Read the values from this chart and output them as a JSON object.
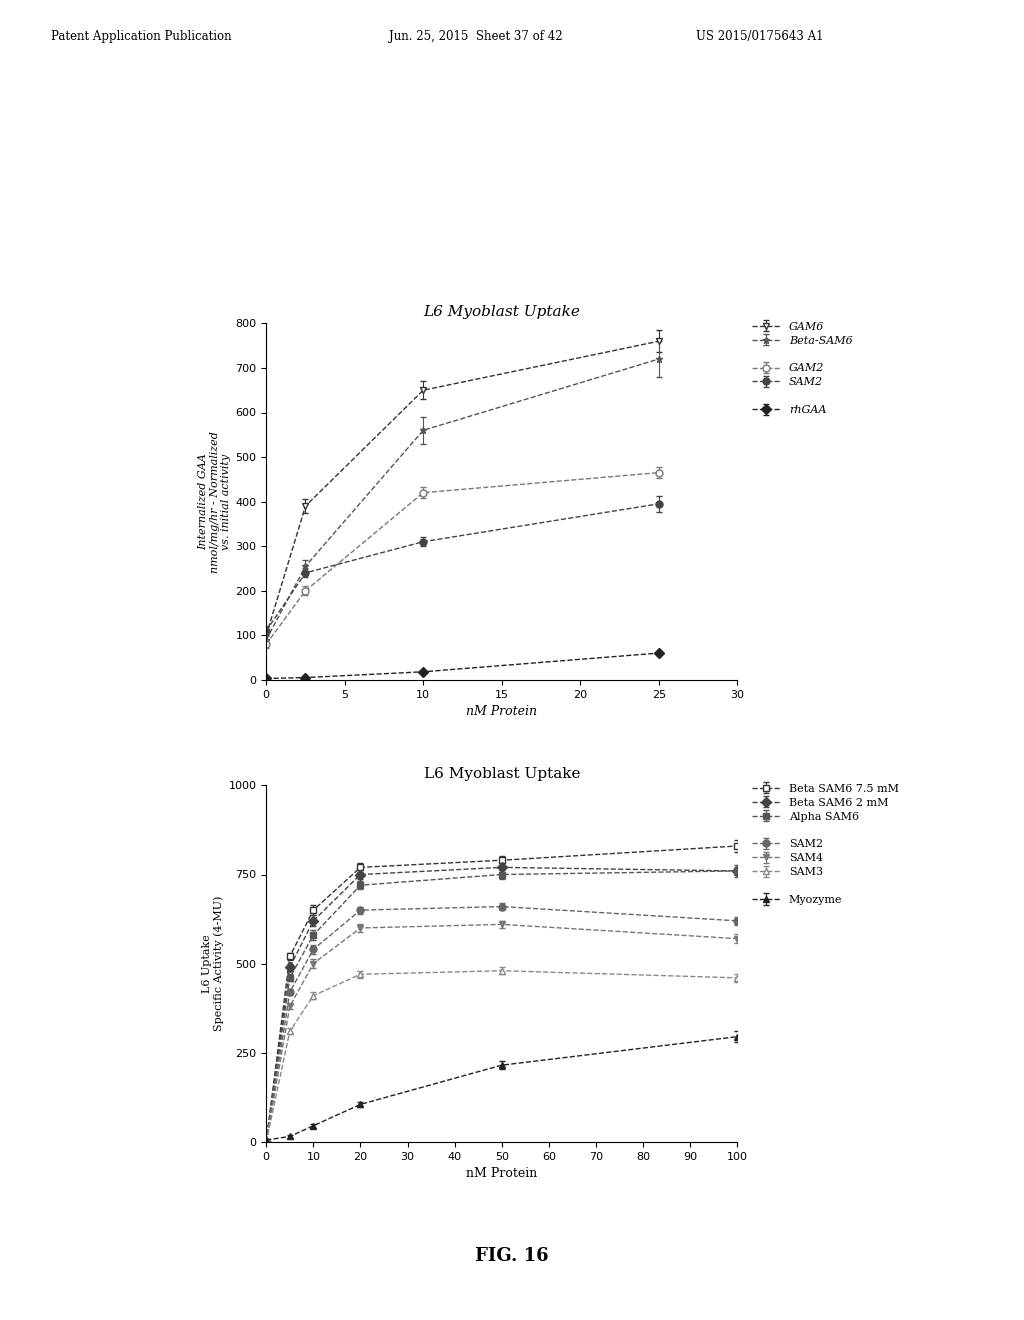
{
  "fig_width": 10.24,
  "fig_height": 13.2,
  "bg_color": "#ffffff",
  "header_text": "Patent Application Publication",
  "header_date": "Jun. 25, 2015  Sheet 37 of 42",
  "header_patent": "US 2015/0175643 A1",
  "figure_label": "FIG. 16",
  "plot1": {
    "title": "L6 Myoblast Uptake",
    "xlabel": "nM Protein",
    "ylabel": "Internalized GAA\nnmol/mg/hr - Normalized\nvs. initial activity",
    "xlim": [
      0,
      30
    ],
    "ylim": [
      0,
      800
    ],
    "xticks": [
      0,
      5,
      10,
      15,
      20,
      25,
      30
    ],
    "yticks": [
      0,
      100,
      200,
      300,
      400,
      500,
      600,
      700,
      800
    ],
    "series": [
      {
        "label": "GAM6",
        "x": [
          0,
          2.5,
          10,
          25
        ],
        "y": [
          100,
          390,
          650,
          760
        ],
        "yerr": [
          10,
          15,
          20,
          25
        ],
        "marker": "v",
        "linestyle": "--",
        "color": "#333333",
        "fillstyle": "none"
      },
      {
        "label": "Beta-SAM6",
        "x": [
          0,
          2.5,
          10,
          25
        ],
        "y": [
          90,
          255,
          560,
          720
        ],
        "yerr": [
          8,
          15,
          30,
          40
        ],
        "marker": "*",
        "linestyle": "--",
        "color": "#555555"
      },
      {
        "label": "GAM2",
        "x": [
          0,
          2.5,
          10,
          25
        ],
        "y": [
          80,
          200,
          420,
          465
        ],
        "yerr": [
          8,
          10,
          12,
          12
        ],
        "marker": "o",
        "linestyle": "--",
        "color": "#777777",
        "fillstyle": "none"
      },
      {
        "label": "SAM2",
        "x": [
          0,
          2.5,
          10,
          25
        ],
        "y": [
          110,
          240,
          310,
          395
        ],
        "yerr": [
          10,
          10,
          10,
          18
        ],
        "marker": "o",
        "linestyle": "--",
        "color": "#444444"
      },
      {
        "label": "rhGAA",
        "x": [
          0,
          2.5,
          10,
          25
        ],
        "y": [
          3,
          5,
          18,
          60
        ],
        "yerr": [
          1,
          1,
          2,
          4
        ],
        "marker": "D",
        "linestyle": "--",
        "color": "#222222"
      }
    ],
    "legend_groups": [
      {
        "indices": [
          0,
          1
        ],
        "gap_after": true
      },
      {
        "indices": [
          2,
          3
        ],
        "gap_after": true
      },
      {
        "indices": [
          4
        ],
        "gap_after": false
      }
    ]
  },
  "plot2": {
    "title": "L6 Myoblast Uptake",
    "xlabel": "nM Protein",
    "ylabel": "L6 Uptake\nSpecific Activity (4-MU)",
    "xlim": [
      0,
      100
    ],
    "ylim": [
      0,
      1000
    ],
    "xticks": [
      0,
      10,
      20,
      30,
      40,
      50,
      60,
      70,
      80,
      90,
      100
    ],
    "yticks": [
      0,
      250,
      500,
      750,
      1000
    ],
    "series": [
      {
        "label": "Beta SAM6 7.5 mM",
        "x": [
          0,
          5,
          10,
          20,
          50,
          100
        ],
        "y": [
          0,
          520,
          650,
          770,
          790,
          830
        ],
        "yerr": [
          3,
          10,
          15,
          12,
          12,
          18
        ],
        "marker": "s",
        "linestyle": "--",
        "color": "#333333",
        "fillstyle": "none"
      },
      {
        "label": "Beta SAM6 2 mM",
        "x": [
          0,
          5,
          10,
          20,
          50,
          100
        ],
        "y": [
          0,
          490,
          620,
          750,
          770,
          760
        ],
        "yerr": [
          3,
          10,
          15,
          12,
          12,
          12
        ],
        "marker": "D",
        "linestyle": "--",
        "color": "#444444"
      },
      {
        "label": "Alpha SAM6",
        "x": [
          0,
          5,
          10,
          20,
          50,
          100
        ],
        "y": [
          0,
          460,
          580,
          720,
          750,
          760
        ],
        "yerr": [
          3,
          10,
          15,
          12,
          12,
          18
        ],
        "marker": "s",
        "linestyle": "--",
        "color": "#555555"
      },
      {
        "label": "SAM2",
        "x": [
          0,
          5,
          10,
          20,
          50,
          100
        ],
        "y": [
          0,
          420,
          540,
          650,
          660,
          620
        ],
        "yerr": [
          3,
          8,
          12,
          10,
          10,
          12
        ],
        "marker": "o",
        "linestyle": "--",
        "color": "#666666"
      },
      {
        "label": "SAM4",
        "x": [
          0,
          5,
          10,
          20,
          50,
          100
        ],
        "y": [
          0,
          380,
          500,
          600,
          610,
          570
        ],
        "yerr": [
          3,
          8,
          12,
          10,
          10,
          12
        ],
        "marker": "v",
        "linestyle": "--",
        "color": "#777777"
      },
      {
        "label": "SAM3",
        "x": [
          0,
          5,
          10,
          20,
          50,
          100
        ],
        "y": [
          0,
          310,
          410,
          470,
          480,
          460
        ],
        "yerr": [
          3,
          8,
          10,
          10,
          10,
          12
        ],
        "marker": "^",
        "linestyle": "--",
        "color": "#888888",
        "fillstyle": "none"
      },
      {
        "label": "Myozyme",
        "x": [
          0,
          5,
          10,
          20,
          50,
          100
        ],
        "y": [
          5,
          15,
          45,
          105,
          215,
          295
        ],
        "yerr": [
          2,
          3,
          5,
          8,
          12,
          15
        ],
        "marker": "^",
        "linestyle": "--",
        "color": "#222222"
      }
    ],
    "legend_groups": [
      {
        "indices": [
          0,
          1,
          2
        ],
        "gap_after": true
      },
      {
        "indices": [
          3,
          4,
          5
        ],
        "gap_after": true
      },
      {
        "indices": [
          6
        ],
        "gap_after": false
      }
    ]
  }
}
